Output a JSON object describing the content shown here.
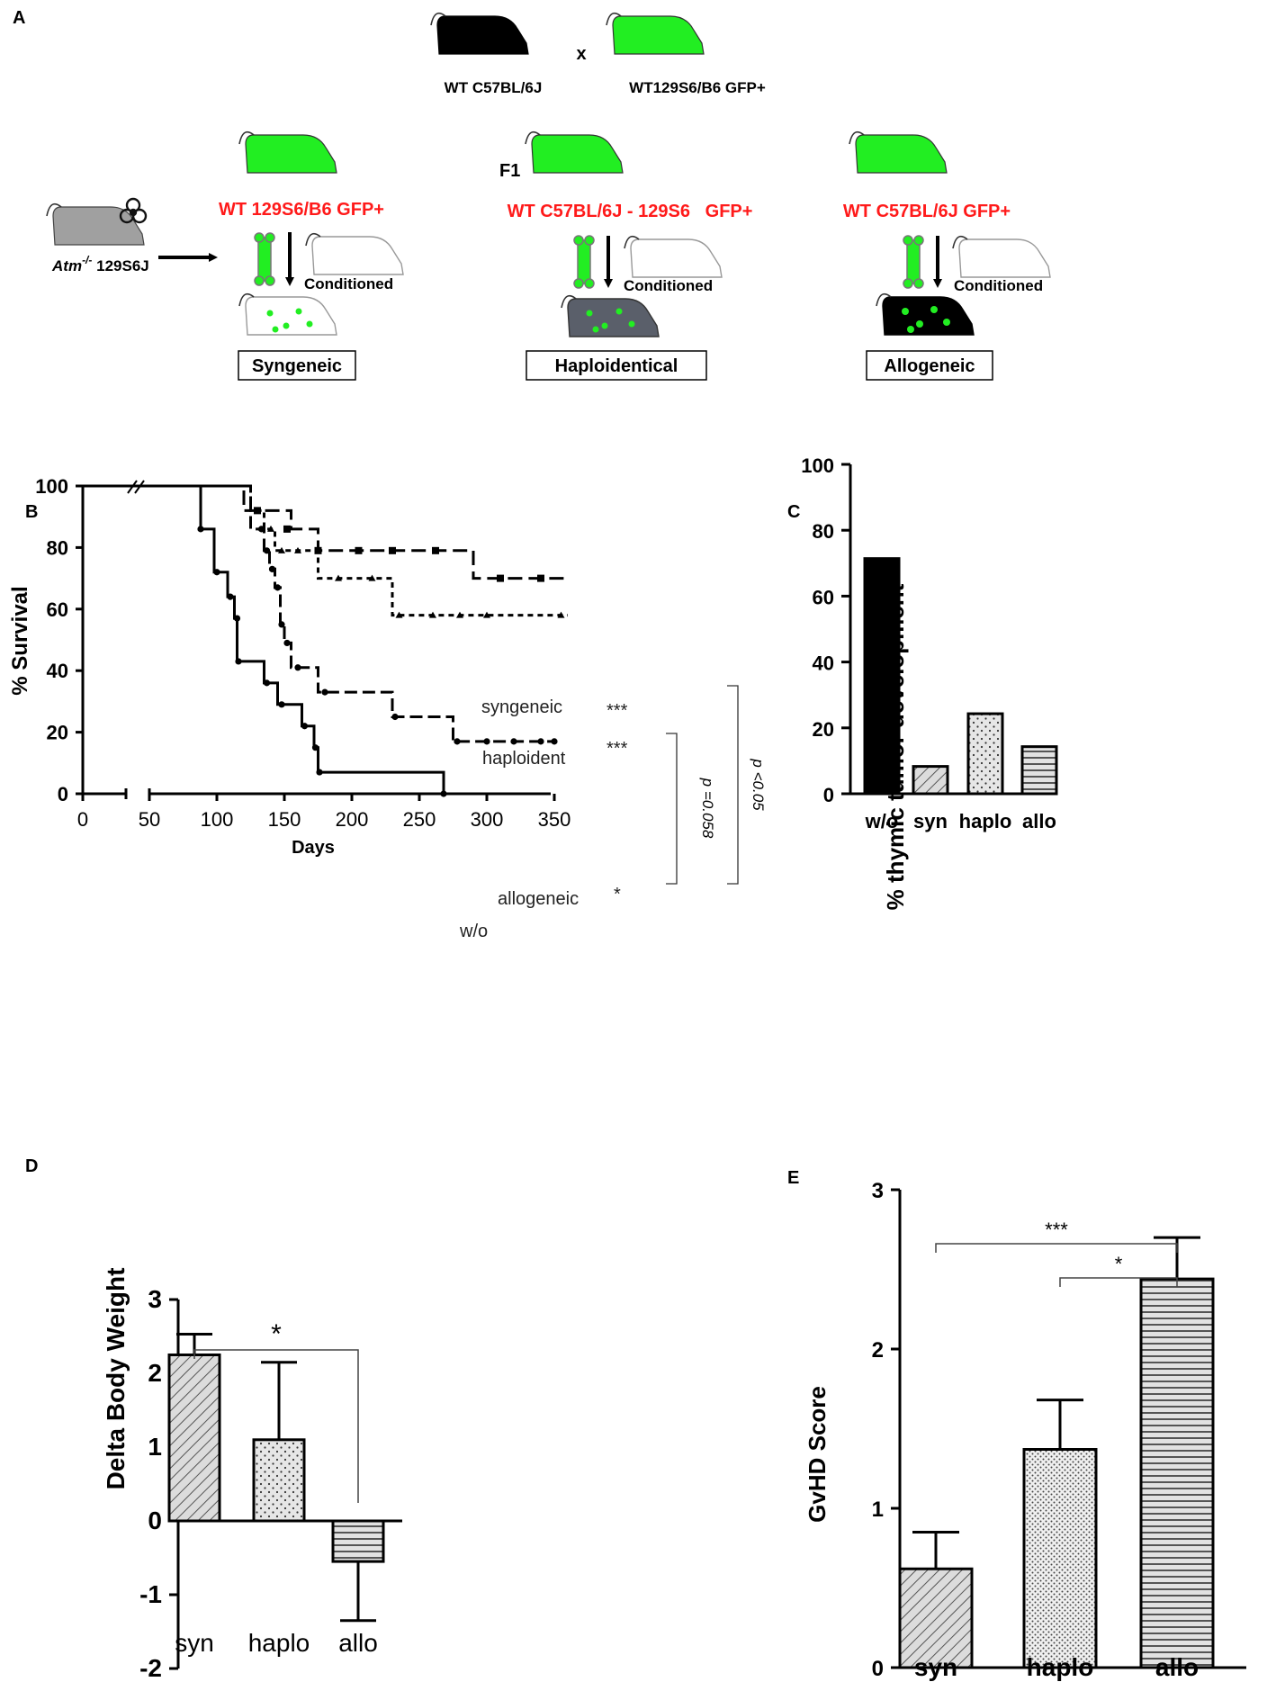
{
  "panel_labels": {
    "a": "A",
    "b": "B",
    "c": "C",
    "d": "D",
    "e": "E"
  },
  "schematic": {
    "cross": {
      "black_label": "WT C57BL/6J",
      "x_symbol": "x",
      "green_label": "WT129S6/B6 GFP+"
    },
    "recipient": {
      "label_prefix": "Atm",
      "label_sup": "-/-",
      "label_suffix": " 129S6J"
    },
    "f1_label": "F1",
    "groups": [
      {
        "donor_label": "WT 129S6/B6 GFP+",
        "conditioned_label": "Conditioned",
        "outcome_label": "Syngeneic"
      },
      {
        "donor_label": "WT C57BL/6J - 129S6   GFP+",
        "conditioned_label": "Conditioned",
        "outcome_label": "Haploidentical"
      },
      {
        "donor_label": "WT C57BL/6J GFP+",
        "conditioned_label": "Conditioned",
        "outcome_label": "Allogeneic"
      }
    ],
    "colors": {
      "donor_text": "#ff1a1a",
      "gfp_green": "#22ee22",
      "recipient_gray": "#a0a0a0",
      "haplo_gray": "#5a5f6a"
    }
  },
  "chart_data": [
    {
      "panel": "B",
      "type": "line",
      "title": "",
      "xlabel": "Days",
      "ylabel": "% Survival",
      "xlim": [
        0,
        360
      ],
      "ylim": [
        0,
        100
      ],
      "x_break": [
        30,
        50
      ],
      "xticks": [
        0,
        50,
        100,
        150,
        200,
        250,
        300,
        350
      ],
      "yticks": [
        0,
        20,
        40,
        60,
        80,
        100
      ],
      "series": [
        {
          "name": "syngeneic",
          "stars": "***",
          "style": "dash-square",
          "steps": [
            [
              0,
              100
            ],
            [
              120,
              100
            ],
            [
              120,
              92
            ],
            [
              155,
              92
            ],
            [
              155,
              86
            ],
            [
              175,
              86
            ],
            [
              175,
              79
            ],
            [
              290,
              79
            ],
            [
              290,
              70
            ],
            [
              360,
              70
            ]
          ],
          "censors": [
            [
              130,
              92
            ],
            [
              152,
              86
            ],
            [
              175,
              79
            ],
            [
              205,
              79
            ],
            [
              230,
              79
            ],
            [
              262,
              79
            ],
            [
              310,
              70
            ],
            [
              340,
              70
            ]
          ]
        },
        {
          "name": "haploident",
          "stars": "***",
          "style": "dotted-triangle",
          "steps": [
            [
              0,
              100
            ],
            [
              125,
              100
            ],
            [
              125,
              92
            ],
            [
              135,
              92
            ],
            [
              135,
              86
            ],
            [
              143,
              86
            ],
            [
              143,
              79
            ],
            [
              175,
              79
            ],
            [
              175,
              70
            ],
            [
              230,
              70
            ],
            [
              230,
              58
            ],
            [
              360,
              58
            ]
          ],
          "censors": [
            [
              130,
              92
            ],
            [
              140,
              86
            ],
            [
              148,
              79
            ],
            [
              160,
              79
            ],
            [
              190,
              70
            ],
            [
              215,
              70
            ],
            [
              235,
              58
            ],
            [
              260,
              58
            ],
            [
              280,
              58
            ],
            [
              300,
              58
            ],
            [
              355,
              58
            ]
          ]
        },
        {
          "name": "allogeneic",
          "stars": "*",
          "style": "dash-dot",
          "steps": [
            [
              0,
              100
            ],
            [
              125,
              100
            ],
            [
              125,
              86
            ],
            [
              135,
              86
            ],
            [
              135,
              79
            ],
            [
              139,
              79
            ],
            [
              139,
              73
            ],
            [
              143,
              73
            ],
            [
              143,
              67
            ],
            [
              147,
              67
            ],
            [
              147,
              55
            ],
            [
              150,
              55
            ],
            [
              150,
              49
            ],
            [
              155,
              49
            ],
            [
              155,
              41
            ],
            [
              175,
              41
            ],
            [
              175,
              33
            ],
            [
              230,
              33
            ],
            [
              230,
              25
            ],
            [
              275,
              25
            ],
            [
              275,
              17
            ],
            [
              350,
              17
            ]
          ],
          "censors": [
            [
              133,
              86
            ],
            [
              137,
              79
            ],
            [
              141,
              73
            ],
            [
              145,
              67
            ],
            [
              148,
              55
            ],
            [
              152,
              49
            ],
            [
              160,
              41
            ],
            [
              180,
              33
            ],
            [
              232,
              25
            ],
            [
              278,
              17
            ],
            [
              300,
              17
            ],
            [
              320,
              17
            ],
            [
              340,
              17
            ],
            [
              350,
              17
            ]
          ]
        },
        {
          "name": "w/o",
          "stars": "",
          "style": "solid",
          "steps": [
            [
              0,
              100
            ],
            [
              88,
              100
            ],
            [
              88,
              86
            ],
            [
              98,
              86
            ],
            [
              98,
              72
            ],
            [
              108,
              72
            ],
            [
              108,
              64
            ],
            [
              113,
              64
            ],
            [
              113,
              57
            ],
            [
              115,
              57
            ],
            [
              115,
              43
            ],
            [
              135,
              43
            ],
            [
              135,
              36
            ],
            [
              145,
              36
            ],
            [
              145,
              29
            ],
            [
              163,
              29
            ],
            [
              163,
              22
            ],
            [
              172,
              22
            ],
            [
              172,
              15
            ],
            [
              175,
              15
            ],
            [
              175,
              7
            ],
            [
              268,
              7
            ],
            [
              268,
              0
            ]
          ],
          "censors": [
            [
              88,
              86
            ],
            [
              100,
              72
            ],
            [
              110,
              64
            ],
            [
              115,
              57
            ],
            [
              116,
              43
            ],
            [
              137,
              36
            ],
            [
              148,
              29
            ],
            [
              165,
              22
            ],
            [
              173,
              15
            ],
            [
              176,
              7
            ],
            [
              268,
              0
            ]
          ]
        }
      ],
      "annotations": {
        "syngeneic_label": "syngeneic",
        "syngeneic_stars": "***",
        "haploident_label": "haploident",
        "haploident_stars": "***",
        "allogeneic_label": "allogeneic",
        "allogeneic_stars": "*",
        "wo_label": "w/o",
        "bracket_inner": "p =0.058",
        "bracket_outer": "p <0.05"
      }
    },
    {
      "panel": "C",
      "type": "bar",
      "title": "",
      "xlabel": "",
      "ylabel": "% thymic tumor development",
      "ylim": [
        0,
        100
      ],
      "yticks": [
        0,
        20,
        40,
        60,
        80,
        100
      ],
      "categories": [
        "w/o",
        "syn",
        "haplo",
        "allo"
      ],
      "values": [
        71.4,
        8.3,
        24.3,
        14.3
      ],
      "fills": [
        "solid-black",
        "diagonal",
        "dots",
        "horizontal"
      ]
    },
    {
      "panel": "D",
      "type": "bar",
      "title": "",
      "xlabel": "",
      "ylabel": "Delta Body Weight",
      "ylim": [
        -2,
        3
      ],
      "yticks": [
        -2,
        -1,
        0,
        1,
        2,
        3
      ],
      "categories": [
        "syn",
        "haplo",
        "allo"
      ],
      "values": [
        2.25,
        1.1,
        -0.55
      ],
      "errors": [
        0.28,
        1.05,
        0.8
      ],
      "fills": [
        "diagonal",
        "dots",
        "horizontal"
      ],
      "significance": [
        {
          "from": "syn",
          "to": "allo",
          "label": "*"
        }
      ]
    },
    {
      "panel": "E",
      "type": "bar",
      "title": "",
      "xlabel": "",
      "ylabel": "GvHD Score",
      "ylim": [
        0,
        3
      ],
      "yticks": [
        0,
        1,
        2,
        3
      ],
      "categories": [
        "syn",
        "haplo",
        "allo"
      ],
      "values": [
        0.62,
        1.37,
        2.44
      ],
      "errors": [
        0.23,
        0.31,
        0.26
      ],
      "fills": [
        "diagonal",
        "dense-dots",
        "horizontal"
      ],
      "significance": [
        {
          "from": "syn",
          "to": "allo",
          "label": "***"
        },
        {
          "from": "haplo",
          "to": "allo",
          "label": "*"
        }
      ]
    }
  ]
}
